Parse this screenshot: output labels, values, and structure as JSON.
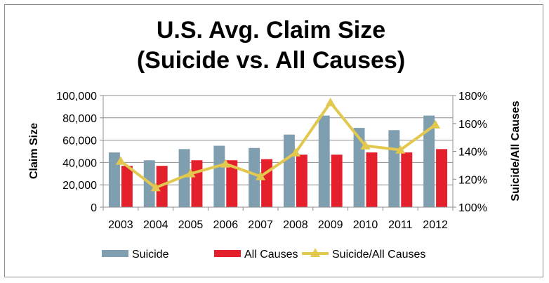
{
  "chart_data": {
    "type": "bar",
    "title_lines": [
      "U.S. Avg. Claim Size",
      "(Suicide vs. All Causes)"
    ],
    "categories": [
      "2003",
      "2004",
      "2005",
      "2006",
      "2007",
      "2008",
      "2009",
      "2010",
      "2011",
      "2012"
    ],
    "ylabel": "Claim Size",
    "y2label": "Suicide/All Causes",
    "ylim": [
      0,
      100000
    ],
    "yticks": [
      "0",
      "20,000",
      "40,000",
      "60,000",
      "80,000",
      "100,000"
    ],
    "y2lim": [
      100,
      180
    ],
    "y2ticks": [
      "100%",
      "120%",
      "140%",
      "160%",
      "180%"
    ],
    "grid": "horizontal",
    "legend_position": "bottom",
    "series": [
      {
        "name": "Suicide",
        "kind": "bar",
        "axis": "left",
        "color": "#7f9fb1",
        "values": [
          49000,
          42000,
          52000,
          55000,
          53000,
          65000,
          82000,
          71000,
          69000,
          82000
        ]
      },
      {
        "name": "All Causes",
        "kind": "bar",
        "axis": "left",
        "color": "#e3202b",
        "values": [
          37000,
          37000,
          42000,
          42000,
          43000,
          47000,
          47000,
          49000,
          49000,
          52000
        ]
      },
      {
        "name": "Suicide/All Causes",
        "kind": "line",
        "axis": "right",
        "color": "#e3c850",
        "values": [
          133,
          114,
          124,
          131,
          122,
          139,
          175,
          144,
          141,
          159
        ]
      }
    ]
  }
}
